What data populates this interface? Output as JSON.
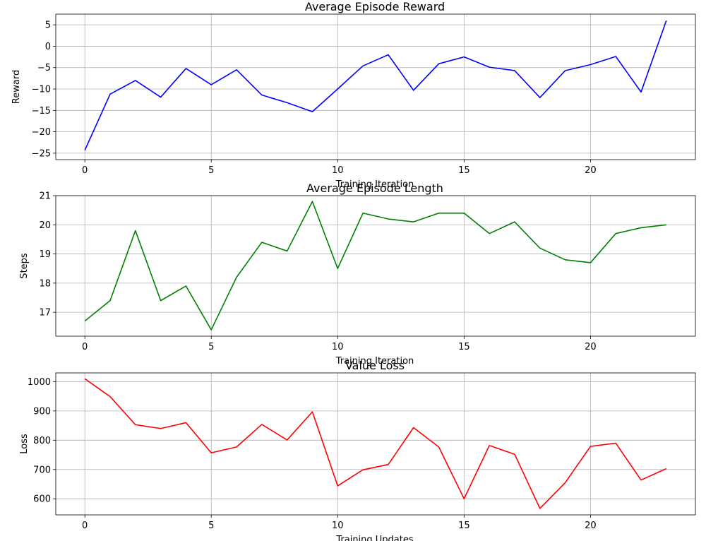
{
  "chart_data": [
    {
      "type": "line",
      "title": "Average Episode Reward",
      "xlabel": "Training Iteration",
      "ylabel": "Reward",
      "xlim": [
        -1.15,
        24.15
      ],
      "ylim": [
        -26.5,
        7.5
      ],
      "xticks": [
        0,
        5,
        10,
        15,
        20
      ],
      "yticks": [
        5,
        0,
        -5,
        -10,
        -15,
        -20,
        -25
      ],
      "grid": true,
      "series": [
        {
          "color": "#0000ff",
          "x": [
            0,
            1,
            2,
            3,
            4,
            5,
            6,
            7,
            8,
            9,
            10,
            11,
            12,
            13,
            14,
            15,
            16,
            17,
            18,
            19,
            20,
            21,
            22,
            23
          ],
          "y": [
            -24.3,
            -11.2,
            -8.0,
            -11.9,
            -5.2,
            -9.0,
            -5.5,
            -11.4,
            -13.2,
            -15.3,
            -10.0,
            -4.6,
            -2.0,
            -10.3,
            -4.1,
            -2.5,
            -4.9,
            -5.7,
            -12.0,
            -5.7,
            -4.3,
            -2.4,
            -10.7,
            6.0
          ]
        }
      ]
    },
    {
      "type": "line",
      "title": "Average Episode Length",
      "xlabel": "Training Iteration",
      "ylabel": "Steps",
      "xlim": [
        -1.15,
        24.15
      ],
      "ylim": [
        16.18,
        21.0
      ],
      "xticks": [
        0,
        5,
        10,
        15,
        20
      ],
      "yticks": [
        17,
        18,
        19,
        20,
        21
      ],
      "grid": true,
      "series": [
        {
          "color": "#008000",
          "x": [
            0,
            1,
            2,
            3,
            4,
            5,
            6,
            7,
            8,
            9,
            10,
            11,
            12,
            13,
            14,
            15,
            16,
            17,
            18,
            19,
            20,
            21,
            22,
            23
          ],
          "y": [
            16.7,
            17.4,
            19.8,
            17.4,
            17.9,
            16.4,
            18.2,
            19.4,
            19.1,
            20.8,
            18.5,
            20.4,
            20.2,
            20.1,
            20.4,
            20.4,
            19.7,
            20.1,
            19.2,
            18.8,
            18.7,
            19.7,
            19.9,
            20.0
          ]
        }
      ]
    },
    {
      "type": "line",
      "title": "Value Loss",
      "xlabel": "Training Updates",
      "ylabel": "Loss",
      "xlim": [
        -1.15,
        24.15
      ],
      "ylim": [
        545,
        1030
      ],
      "xticks": [
        0,
        5,
        10,
        15,
        20
      ],
      "yticks": [
        1000,
        900,
        800,
        700,
        600
      ],
      "grid": true,
      "series": [
        {
          "color": "#ff0000",
          "x": [
            0,
            1,
            2,
            3,
            4,
            5,
            6,
            7,
            8,
            9,
            10,
            11,
            12,
            13,
            14,
            15,
            16,
            17,
            18,
            19,
            20,
            21,
            22,
            23
          ],
          "y": [
            1010,
            949,
            853,
            840,
            860,
            757,
            777,
            854,
            801,
            897,
            644,
            699,
            717,
            843,
            777,
            600,
            782,
            752,
            567,
            655,
            779,
            790,
            664,
            703
          ]
        }
      ]
    }
  ]
}
